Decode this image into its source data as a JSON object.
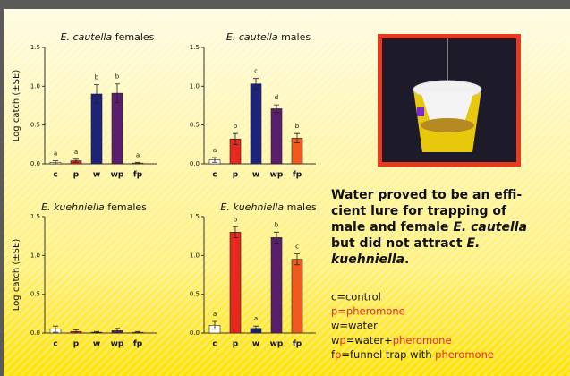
{
  "chart_data": [
    {
      "type": "bar",
      "title_species": "E. cautella",
      "title_sex": "females",
      "ylabel": "Log catch (±SE)",
      "categories": [
        "c",
        "p",
        "w",
        "wp",
        "fp"
      ],
      "values": [
        0.02,
        0.04,
        0.9,
        0.91,
        0.01
      ],
      "errors": [
        0.02,
        0.02,
        0.12,
        0.12,
        0.01
      ],
      "letters": [
        "a",
        "a",
        "b",
        "b",
        "a"
      ],
      "colors": [
        "#ffffff",
        "#e8281e",
        "#1c237a",
        "#5a1e6e",
        "#ef5a1e"
      ],
      "ylim": [
        0,
        1.5
      ],
      "yticks": [
        {
          "value": 0,
          "label": "0.0"
        },
        0.5,
        {
          "value": 1,
          "label": "1.0"
        },
        1.5
      ]
    },
    {
      "type": "bar",
      "title_species": "E. cautella",
      "title_sex": "males",
      "categories": [
        "c",
        "p",
        "w",
        "wp",
        "fp"
      ],
      "values": [
        0.05,
        0.32,
        1.03,
        0.71,
        0.33
      ],
      "errors": [
        0.03,
        0.07,
        0.07,
        0.05,
        0.06
      ],
      "letters": [
        "a",
        "b",
        "c",
        "d",
        "b"
      ],
      "colors": [
        "#ffffff",
        "#e8281e",
        "#1c237a",
        "#5a1e6e",
        "#ef5a1e"
      ],
      "ylim": [
        0,
        1.5
      ],
      "yticks": [
        {
          "value": 0,
          "label": "0.0"
        },
        0.5,
        {
          "value": 1,
          "label": "1.0"
        },
        1.5
      ]
    },
    {
      "type": "bar",
      "title_species": "E. kuehniella",
      "title_sex": "females",
      "ylabel": "Log catch (±SE)",
      "categories": [
        "c",
        "p",
        "w",
        "wp",
        "fp"
      ],
      "values": [
        0.05,
        0.02,
        0.01,
        0.03,
        0.01
      ],
      "errors": [
        0.04,
        0.02,
        0.01,
        0.03,
        0.01
      ],
      "colors": [
        "#ffffff",
        "#e8281e",
        "#1c237a",
        "#5a1e6e",
        "#ef5a1e"
      ],
      "ylim": [
        0,
        1.5
      ],
      "yticks": [
        {
          "value": 0,
          "label": "0.0"
        },
        0.5,
        {
          "value": 1,
          "label": "1.0"
        },
        1.5
      ]
    },
    {
      "type": "bar",
      "title_species": "E. kuehniella",
      "title_sex": "males",
      "categories": [
        "c",
        "p",
        "w",
        "wp",
        "fp"
      ],
      "values": [
        0.1,
        1.3,
        0.06,
        1.23,
        0.95
      ],
      "errors": [
        0.05,
        0.07,
        0.03,
        0.07,
        0.07
      ],
      "letters": [
        "a",
        "b",
        "a",
        "b",
        "c"
      ],
      "colors": [
        "#ffffff",
        "#e8281e",
        "#1c237a",
        "#5a1e6e",
        "#ef5a1e"
      ],
      "ylim": [
        0,
        1.5
      ],
      "yticks": [
        {
          "value": 0,
          "label": "0.0"
        },
        0.5,
        {
          "value": 1,
          "label": "1.0"
        },
        1.5
      ]
    }
  ],
  "caption": [
    [
      "Water proved to be an effi-"
    ],
    [
      "cient lure for trapping of"
    ],
    [
      "male and female ",
      "E. cautella"
    ],
    [
      "but did not attract ",
      "E."
    ],
    [
      "kuehniella",
      "."
    ]
  ],
  "key": [
    [
      "c=control"
    ],
    [
      "p=pheromone"
    ],
    [
      "w=water"
    ],
    [
      "w",
      "p",
      "=water+",
      "pheromone"
    ],
    [
      "f",
      "p",
      "=funnel trap with ",
      "pheromone"
    ]
  ]
}
